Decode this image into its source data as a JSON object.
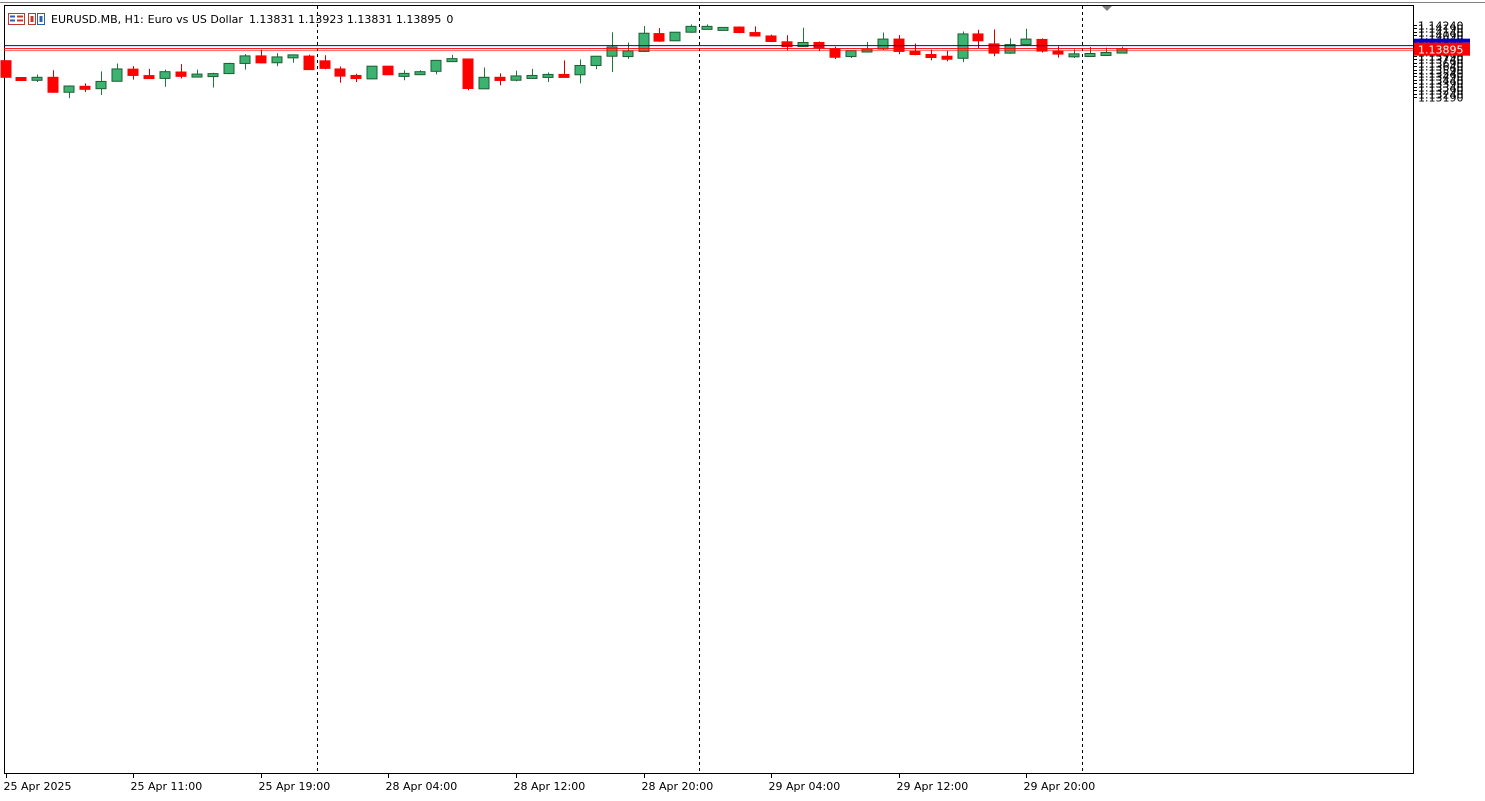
{
  "chart_header": {
    "symbol": "EURUSD.MB, H1:",
    "description": "Euro vs US Dollar",
    "ohlc": "1.13831 1.13923 1.13831 1.13895",
    "volume": "0"
  },
  "colors": {
    "bull": "#3cb371",
    "bear": "#ff0000",
    "wick_bull": "#1e7a3a",
    "wick_bear": "#d40000",
    "grid_sep": "#000000",
    "bid_line": "#ff0000",
    "ask_line": "#0000cc",
    "price_label_bg": "#ff0000",
    "price_label_text": "#ffffff"
  },
  "chart_data": {
    "type": "candlestick",
    "symbol": "EURUSD.MB",
    "timeframe": "H1",
    "current_price": 1.13895,
    "current_price_label": "1.13895",
    "y_ticks": [
      "1.14240",
      "1.14190",
      "1.14140",
      "1.14090",
      "1.14040",
      "1.13990",
      "1.13940",
      "1.13840",
      "1.13790",
      "1.13740",
      "1.13690",
      "1.13640",
      "1.13590",
      "1.13540",
      "1.13490",
      "1.13440",
      "1.13390",
      "1.13340",
      "1.13290",
      "1.13240",
      "1.13190"
    ],
    "x_ticks": [
      {
        "label": "25 Apr 2025",
        "index": 0
      },
      {
        "label": "25 Apr 11:00",
        "index": 8
      },
      {
        "label": "25 Apr 19:00",
        "index": 16
      },
      {
        "label": "28 Apr 04:00",
        "index": 24
      },
      {
        "label": "28 Apr 12:00",
        "index": 32
      },
      {
        "label": "28 Apr 20:00",
        "index": 40
      },
      {
        "label": "29 Apr 04:00",
        "index": 48
      },
      {
        "label": "29 Apr 12:00",
        "index": 56
      },
      {
        "label": "29 Apr 20:00",
        "index": 64
      }
    ],
    "separators": [
      19.5,
      43.5,
      67.5
    ],
    "candles": [
      {
        "o": 1.1372,
        "h": 1.1372,
        "l": 1.13478,
        "c": 1.13478
      },
      {
        "o": 1.13475,
        "h": 1.13483,
        "l": 1.13422,
        "c": 1.13437
      },
      {
        "o": 1.13438,
        "h": 1.13518,
        "l": 1.1341,
        "c": 1.13478
      },
      {
        "o": 1.13478,
        "h": 1.1358,
        "l": 1.13253,
        "c": 1.1326
      },
      {
        "o": 1.1326,
        "h": 1.1336,
        "l": 1.13175,
        "c": 1.13351
      },
      {
        "o": 1.13347,
        "h": 1.1339,
        "l": 1.13263,
        "c": 1.13312
      },
      {
        "o": 1.13312,
        "h": 1.13565,
        "l": 1.1322,
        "c": 1.13418
      },
      {
        "o": 1.1342,
        "h": 1.1368,
        "l": 1.1342,
        "c": 1.136
      },
      {
        "o": 1.13597,
        "h": 1.1364,
        "l": 1.13445,
        "c": 1.13505
      },
      {
        "o": 1.13503,
        "h": 1.136,
        "l": 1.13458,
        "c": 1.13462
      },
      {
        "o": 1.13462,
        "h": 1.1359,
        "l": 1.1334,
        "c": 1.1356
      },
      {
        "o": 1.13555,
        "h": 1.1367,
        "l": 1.1346,
        "c": 1.13492
      },
      {
        "o": 1.13493,
        "h": 1.1359,
        "l": 1.1349,
        "c": 1.13525
      },
      {
        "o": 1.13525,
        "h": 1.13545,
        "l": 1.1333,
        "c": 1.13532
      },
      {
        "o": 1.13532,
        "h": 1.1369,
        "l": 1.13525,
        "c": 1.1368
      },
      {
        "o": 1.1368,
        "h": 1.13815,
        "l": 1.1359,
        "c": 1.1379
      },
      {
        "o": 1.1379,
        "h": 1.1388,
        "l": 1.1368,
        "c": 1.13688
      },
      {
        "o": 1.1369,
        "h": 1.1383,
        "l": 1.1364,
        "c": 1.13775
      },
      {
        "o": 1.13775,
        "h": 1.1381,
        "l": 1.1369,
        "c": 1.13805
      },
      {
        "o": 1.13787,
        "h": 1.13808,
        "l": 1.13585,
        "c": 1.1359
      },
      {
        "o": 1.13718,
        "h": 1.138,
        "l": 1.13595,
        "c": 1.13608
      },
      {
        "o": 1.136,
        "h": 1.13635,
        "l": 1.134,
        "c": 1.13495
      },
      {
        "o": 1.13505,
        "h": 1.1353,
        "l": 1.1341,
        "c": 1.1346
      },
      {
        "o": 1.13455,
        "h": 1.13645,
        "l": 1.1345,
        "c": 1.1364
      },
      {
        "o": 1.1364,
        "h": 1.13645,
        "l": 1.1351,
        "c": 1.13515
      },
      {
        "o": 1.13512,
        "h": 1.1358,
        "l": 1.13435,
        "c": 1.13535
      },
      {
        "o": 1.13532,
        "h": 1.1358,
        "l": 1.1352,
        "c": 1.1356
      },
      {
        "o": 1.13565,
        "h": 1.1373,
        "l": 1.1352,
        "c": 1.13725
      },
      {
        "o": 1.1372,
        "h": 1.13805,
        "l": 1.1371,
        "c": 1.1375
      },
      {
        "o": 1.13745,
        "h": 1.13745,
        "l": 1.1329,
        "c": 1.13315
      },
      {
        "o": 1.1331,
        "h": 1.1362,
        "l": 1.13305,
        "c": 1.13478
      },
      {
        "o": 1.13478,
        "h": 1.13535,
        "l": 1.1336,
        "c": 1.13432
      },
      {
        "o": 1.13435,
        "h": 1.13575,
        "l": 1.1342,
        "c": 1.13498
      },
      {
        "o": 1.13495,
        "h": 1.136,
        "l": 1.13485,
        "c": 1.13505
      },
      {
        "o": 1.13508,
        "h": 1.13548,
        "l": 1.1341,
        "c": 1.1352
      },
      {
        "o": 1.1352,
        "h": 1.13725,
        "l": 1.13505,
        "c": 1.13512
      },
      {
        "o": 1.13515,
        "h": 1.1374,
        "l": 1.1339,
        "c": 1.1365
      },
      {
        "o": 1.1365,
        "h": 1.1379,
        "l": 1.13595,
        "c": 1.13785
      },
      {
        "o": 1.13785,
        "h": 1.14135,
        "l": 1.13555,
        "c": 1.1392
      },
      {
        "o": 1.1378,
        "h": 1.13985,
        "l": 1.13745,
        "c": 1.13862
      },
      {
        "o": 1.13855,
        "h": 1.14225,
        "l": 1.13845,
        "c": 1.1412
      },
      {
        "o": 1.14115,
        "h": 1.14195,
        "l": 1.13995,
        "c": 1.14005
      },
      {
        "o": 1.1401,
        "h": 1.14135,
        "l": 1.14005,
        "c": 1.14135
      },
      {
        "o": 1.14135,
        "h": 1.1425,
        "l": 1.14125,
        "c": 1.1422
      },
      {
        "o": 1.1422,
        "h": 1.1425,
        "l": 1.14195,
        "c": 1.1422
      },
      {
        "o": 1.142,
        "h": 1.14205,
        "l": 1.1419,
        "c": 1.14205
      },
      {
        "o": 1.1421,
        "h": 1.1422,
        "l": 1.1412,
        "c": 1.1413
      },
      {
        "o": 1.1413,
        "h": 1.1422,
        "l": 1.1407,
        "c": 1.1408
      },
      {
        "o": 1.1408,
        "h": 1.141,
        "l": 1.1399,
        "c": 1.14
      },
      {
        "o": 1.13995,
        "h": 1.1409,
        "l": 1.1387,
        "c": 1.13925
      },
      {
        "o": 1.13925,
        "h": 1.142,
        "l": 1.1392,
        "c": 1.13985
      },
      {
        "o": 1.13985,
        "h": 1.14,
        "l": 1.1386,
        "c": 1.1391
      },
      {
        "o": 1.13895,
        "h": 1.13925,
        "l": 1.13745,
        "c": 1.1377
      },
      {
        "o": 1.1378,
        "h": 1.1387,
        "l": 1.1376,
        "c": 1.13865
      },
      {
        "o": 1.13865,
        "h": 1.13995,
        "l": 1.13845,
        "c": 1.1389
      },
      {
        "o": 1.1389,
        "h": 1.1413,
        "l": 1.13875,
        "c": 1.14035
      },
      {
        "o": 1.14035,
        "h": 1.14095,
        "l": 1.13815,
        "c": 1.13855
      },
      {
        "o": 1.13855,
        "h": 1.1397,
        "l": 1.138,
        "c": 1.1381
      },
      {
        "o": 1.1381,
        "h": 1.1388,
        "l": 1.13725,
        "c": 1.13785
      },
      {
        "o": 1.13785,
        "h": 1.13865,
        "l": 1.13712,
        "c": 1.13745
      },
      {
        "o": 1.13755,
        "h": 1.14145,
        "l": 1.137,
        "c": 1.1411
      },
      {
        "o": 1.1411,
        "h": 1.1417,
        "l": 1.13905,
        "c": 1.1401
      },
      {
        "o": 1.13965,
        "h": 1.14175,
        "l": 1.13785,
        "c": 1.1383
      },
      {
        "o": 1.1383,
        "h": 1.14045,
        "l": 1.1382,
        "c": 1.13955
      },
      {
        "o": 1.13955,
        "h": 1.14185,
        "l": 1.1395,
        "c": 1.14035
      },
      {
        "o": 1.1403,
        "h": 1.14045,
        "l": 1.1384,
        "c": 1.1386
      },
      {
        "o": 1.1386,
        "h": 1.1393,
        "l": 1.13765,
        "c": 1.1382
      },
      {
        "o": 1.1382,
        "h": 1.13885,
        "l": 1.1376,
        "c": 1.1382
      },
      {
        "o": 1.13815,
        "h": 1.1392,
        "l": 1.13805,
        "c": 1.13825
      },
      {
        "o": 1.13815,
        "h": 1.1391,
        "l": 1.138,
        "c": 1.1384
      },
      {
        "o": 1.13831,
        "h": 1.13923,
        "l": 1.13831,
        "c": 1.13895
      }
    ]
  }
}
